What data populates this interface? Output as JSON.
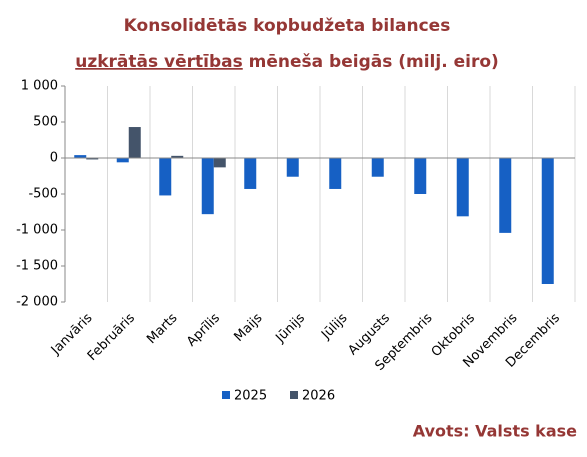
{
  "chart_data": {
    "type": "bar",
    "title": [
      "Konsolidētās kopbudžeta bilances",
      "uzkrātās vērtības",
      "mēneša beigās (milj. eiro)"
    ],
    "categories": [
      "Janvāris",
      "Februāris",
      "Marts",
      "Aprīlis",
      "Maijs",
      "Jūnijs",
      "Jūlijs",
      "Augusts",
      "Septembris",
      "Oktobris",
      "Novembris",
      "Decembris"
    ],
    "series": [
      {
        "name": "2025",
        "color": "#1660c4",
        "values": [
          40,
          -60,
          -520,
          -780,
          -430,
          -260,
          -430,
          -260,
          -500,
          -810,
          -1040,
          -1750
        ]
      },
      {
        "name": "2026",
        "color": "#44546a",
        "values": [
          -20,
          430,
          30,
          -130,
          null,
          null,
          null,
          null,
          null,
          null,
          null,
          null
        ]
      }
    ],
    "ylim": [
      -2000,
      1000
    ],
    "yticks": [
      {
        "value": 1000,
        "label": "1 000"
      },
      500,
      0,
      -500,
      {
        "value": -1000,
        "label": "-1 000"
      },
      {
        "value": -1500,
        "label": "-1 500"
      },
      {
        "value": -2000,
        "label": "-2 000"
      }
    ],
    "legend": "bottom",
    "source": "Avots: Valsts kase"
  }
}
